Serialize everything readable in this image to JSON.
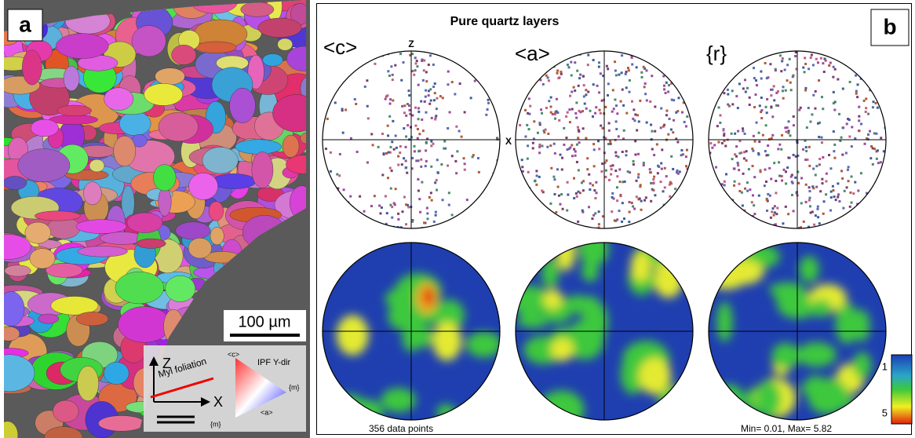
{
  "panel_a": {
    "label": "a",
    "scale_bar": "100 µm",
    "inset": {
      "axis_z": "Z",
      "axis_x": "X",
      "foliation": "Myl foliation",
      "ipf_title": "IPF Y-dir",
      "ipf_c": "<c>",
      "ipf_m_right": "{m}",
      "ipf_a": "<a>",
      "ipf_m_bottom": "{m}"
    }
  },
  "panel_b": {
    "label": "b",
    "title": "Pure quartz layers",
    "figures": [
      "<c>",
      "<a>",
      "{r}"
    ],
    "axis_z": "Z",
    "axis_x": "X",
    "data_points": "356 data points",
    "min_max": "Min= 0.01, Max= 5.82",
    "colorbar_ticks": [
      1,
      5
    ]
  }
}
